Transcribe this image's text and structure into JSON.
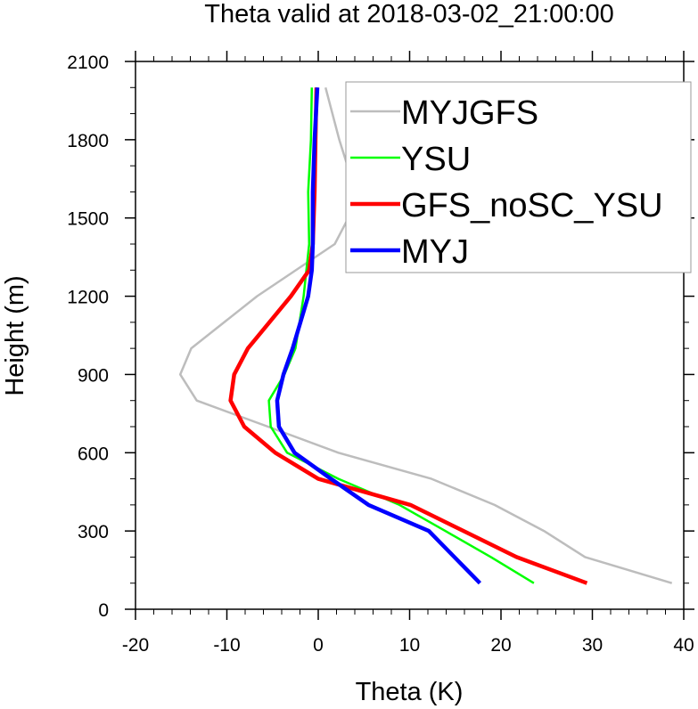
{
  "chart_data": {
    "type": "line",
    "title": "Theta valid at 2018-03-02_21:00:00",
    "xlabel": "Theta (K)",
    "ylabel": "Height (m)",
    "xlim": [
      -20,
      40
    ],
    "ylim": [
      0,
      2100
    ],
    "xticks": [
      -20,
      -10,
      0,
      10,
      20,
      30,
      40
    ],
    "yticks": [
      0,
      300,
      600,
      900,
      1200,
      1500,
      1800,
      2100
    ],
    "xtick_labels": [
      "-20",
      "-10",
      "0",
      "10",
      "20",
      "30",
      "40"
    ],
    "ytick_labels": [
      "0",
      "300",
      "600",
      "900",
      "1200",
      "1500",
      "1800",
      "2100"
    ],
    "grid": false,
    "legend_position": "top-right",
    "series": [
      {
        "name": "MYJGFS",
        "color": "#bdbdbd",
        "linewidth": "thin",
        "points": [
          [
            38.7,
            100
          ],
          [
            29.2,
            200
          ],
          [
            24.7,
            300
          ],
          [
            19.3,
            400
          ],
          [
            12.4,
            500
          ],
          [
            2.2,
            600
          ],
          [
            -5.5,
            700
          ],
          [
            -13.3,
            800
          ],
          [
            -15.1,
            900
          ],
          [
            -13.9,
            1000
          ],
          [
            -6.7,
            1200
          ],
          [
            1.8,
            1400
          ],
          [
            3.3,
            1500
          ],
          [
            3.8,
            1600
          ],
          [
            3.2,
            1700
          ],
          [
            2.3,
            1800
          ],
          [
            0.8,
            2000
          ]
        ]
      },
      {
        "name": "YSU",
        "color": "#00ff00",
        "linewidth": "thin",
        "points": [
          [
            23.6,
            100
          ],
          [
            18.9,
            200
          ],
          [
            13.9,
            300
          ],
          [
            8.9,
            400
          ],
          [
            2.2,
            500
          ],
          [
            -3.4,
            600
          ],
          [
            -5.2,
            700
          ],
          [
            -5.4,
            800
          ],
          [
            -3.7,
            900
          ],
          [
            -2.5,
            1000
          ],
          [
            -1.6,
            1200
          ],
          [
            -1.0,
            1400
          ],
          [
            -1.1,
            1600
          ],
          [
            -0.8,
            1800
          ],
          [
            -0.7,
            2000
          ]
        ]
      },
      {
        "name": "GFS_noSC_YSU",
        "color": "#ff0000",
        "linewidth": "thick",
        "points": [
          [
            29.4,
            100
          ],
          [
            21.7,
            200
          ],
          [
            15.9,
            300
          ],
          [
            10.1,
            400
          ],
          [
            0.0,
            500
          ],
          [
            -4.7,
            600
          ],
          [
            -8.1,
            700
          ],
          [
            -9.6,
            800
          ],
          [
            -9.2,
            900
          ],
          [
            -7.7,
            1000
          ],
          [
            -3.0,
            1200
          ],
          [
            -1.0,
            1300
          ],
          [
            -0.6,
            1400
          ],
          [
            -0.4,
            1600
          ],
          [
            -0.3,
            1800
          ],
          [
            -0.2,
            2000
          ]
        ]
      },
      {
        "name": "MYJ",
        "color": "#0000ff",
        "linewidth": "thick",
        "points": [
          [
            17.7,
            100
          ],
          [
            12.1,
            300
          ],
          [
            5.5,
            400
          ],
          [
            1.4,
            500
          ],
          [
            -2.6,
            600
          ],
          [
            -4.3,
            700
          ],
          [
            -4.5,
            800
          ],
          [
            -3.8,
            900
          ],
          [
            -2.8,
            1000
          ],
          [
            -1.1,
            1200
          ],
          [
            -0.7,
            1300
          ],
          [
            -0.6,
            1400
          ],
          [
            -0.6,
            1600
          ],
          [
            -0.4,
            1800
          ],
          [
            -0.1,
            2000
          ]
        ]
      }
    ]
  }
}
